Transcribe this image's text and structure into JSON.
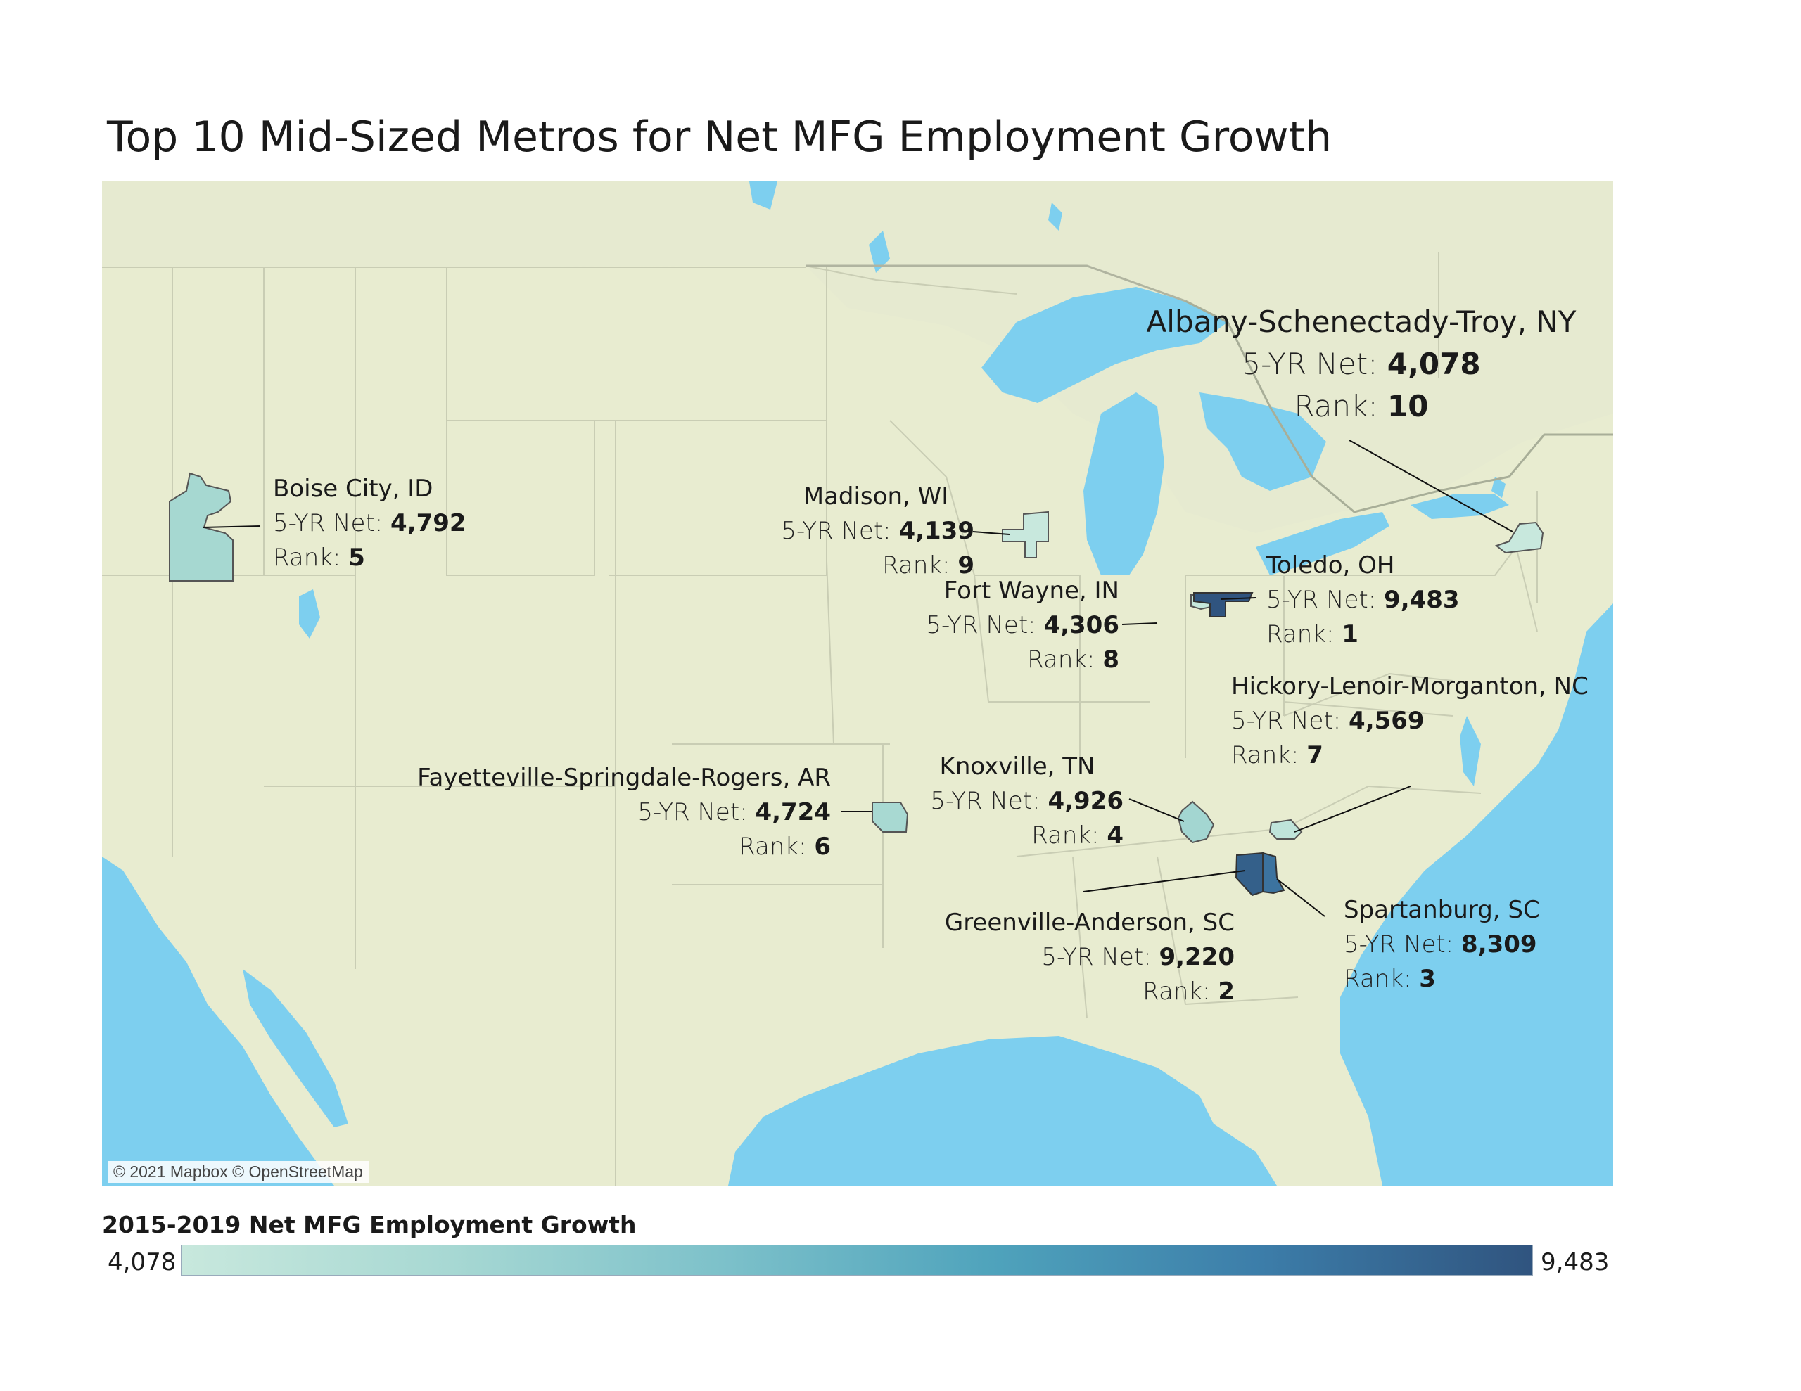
{
  "title": "Top 10 Mid-Sized Metros for Net MFG Employment Growth",
  "map_credit": "© 2021 Mapbox © OpenStreetMap",
  "legend": {
    "title": "2015-2019 Net MFG Employment Growth",
    "min": "4,078",
    "max": "9,483",
    "color_low": "#c8e8dd",
    "color_high": "#30547f"
  },
  "colors": {
    "land": "#e8ecd0",
    "water": "#7dcfef",
    "border": "#c9cdb4"
  },
  "metros": [
    {
      "name": "Albany-Schenectady-Troy, NY",
      "net_label": "5-YR Net:",
      "net": "4,078",
      "rank_label": "Rank:",
      "rank": "10"
    },
    {
      "name": "Boise City, ID",
      "net_label": "5-YR Net:",
      "net": "4,792",
      "rank_label": "Rank:",
      "rank": "5"
    },
    {
      "name": "Madison, WI",
      "net_label": "5-YR Net:",
      "net": "4,139",
      "rank_label": "Rank:",
      "rank": "9"
    },
    {
      "name": "Toledo, OH",
      "net_label": "5-YR Net:",
      "net": "9,483",
      "rank_label": "Rank:",
      "rank": "1"
    },
    {
      "name": "Fort Wayne, IN",
      "net_label": "5-YR Net:",
      "net": "4,306",
      "rank_label": "Rank:",
      "rank": "8"
    },
    {
      "name": "Hickory-Lenoir-Morganton, NC",
      "net_label": "5-YR Net:",
      "net": "4,569",
      "rank_label": "Rank:",
      "rank": "7"
    },
    {
      "name": "Fayetteville-Springdale-Rogers, AR",
      "net_label": "5-YR Net:",
      "net": "4,724",
      "rank_label": "Rank:",
      "rank": "6"
    },
    {
      "name": "Knoxville, TN",
      "net_label": "5-YR Net:",
      "net": "4,926",
      "rank_label": "Rank:",
      "rank": "4"
    },
    {
      "name": "Greenville-Anderson, SC",
      "net_label": "5-YR Net:",
      "net": "9,220",
      "rank_label": "Rank:",
      "rank": "2"
    },
    {
      "name": "Spartanburg, SC",
      "net_label": "5-YR Net:",
      "net": "8,309",
      "rank_label": "Rank:",
      "rank": "3"
    }
  ]
}
